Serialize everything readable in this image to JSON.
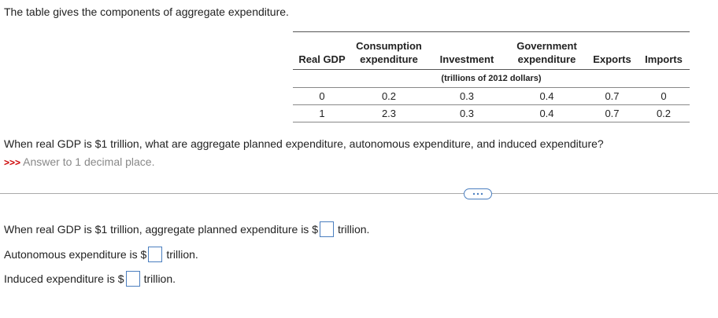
{
  "intro": "The table gives the components of aggregate expenditure.",
  "table": {
    "headers": [
      "Real GDP",
      "Consumption expenditure",
      "Investment",
      "Government expenditure",
      "Exports",
      "Imports"
    ],
    "units": "(trillions of 2012 dollars)",
    "rows": [
      [
        0,
        0.2,
        0.3,
        0.4,
        0.7,
        0
      ],
      [
        1,
        2.3,
        0.3,
        0.4,
        0.7,
        0.2
      ]
    ]
  },
  "question": "When real GDP is $1 trillion, what are aggregate planned expenditure, autonomous expenditure, and induced expenditure?",
  "hint_marker": ">>>",
  "hint": "Answer to 1 decimal place.",
  "answers": [
    {
      "prefix": "When real GDP is $1 trillion, aggregate planned expenditure is $",
      "suffix": "trillion."
    },
    {
      "prefix": "Autonomous expenditure is $",
      "suffix": "trillion."
    },
    {
      "prefix": "Induced expenditure is $",
      "suffix": "trillion."
    }
  ]
}
